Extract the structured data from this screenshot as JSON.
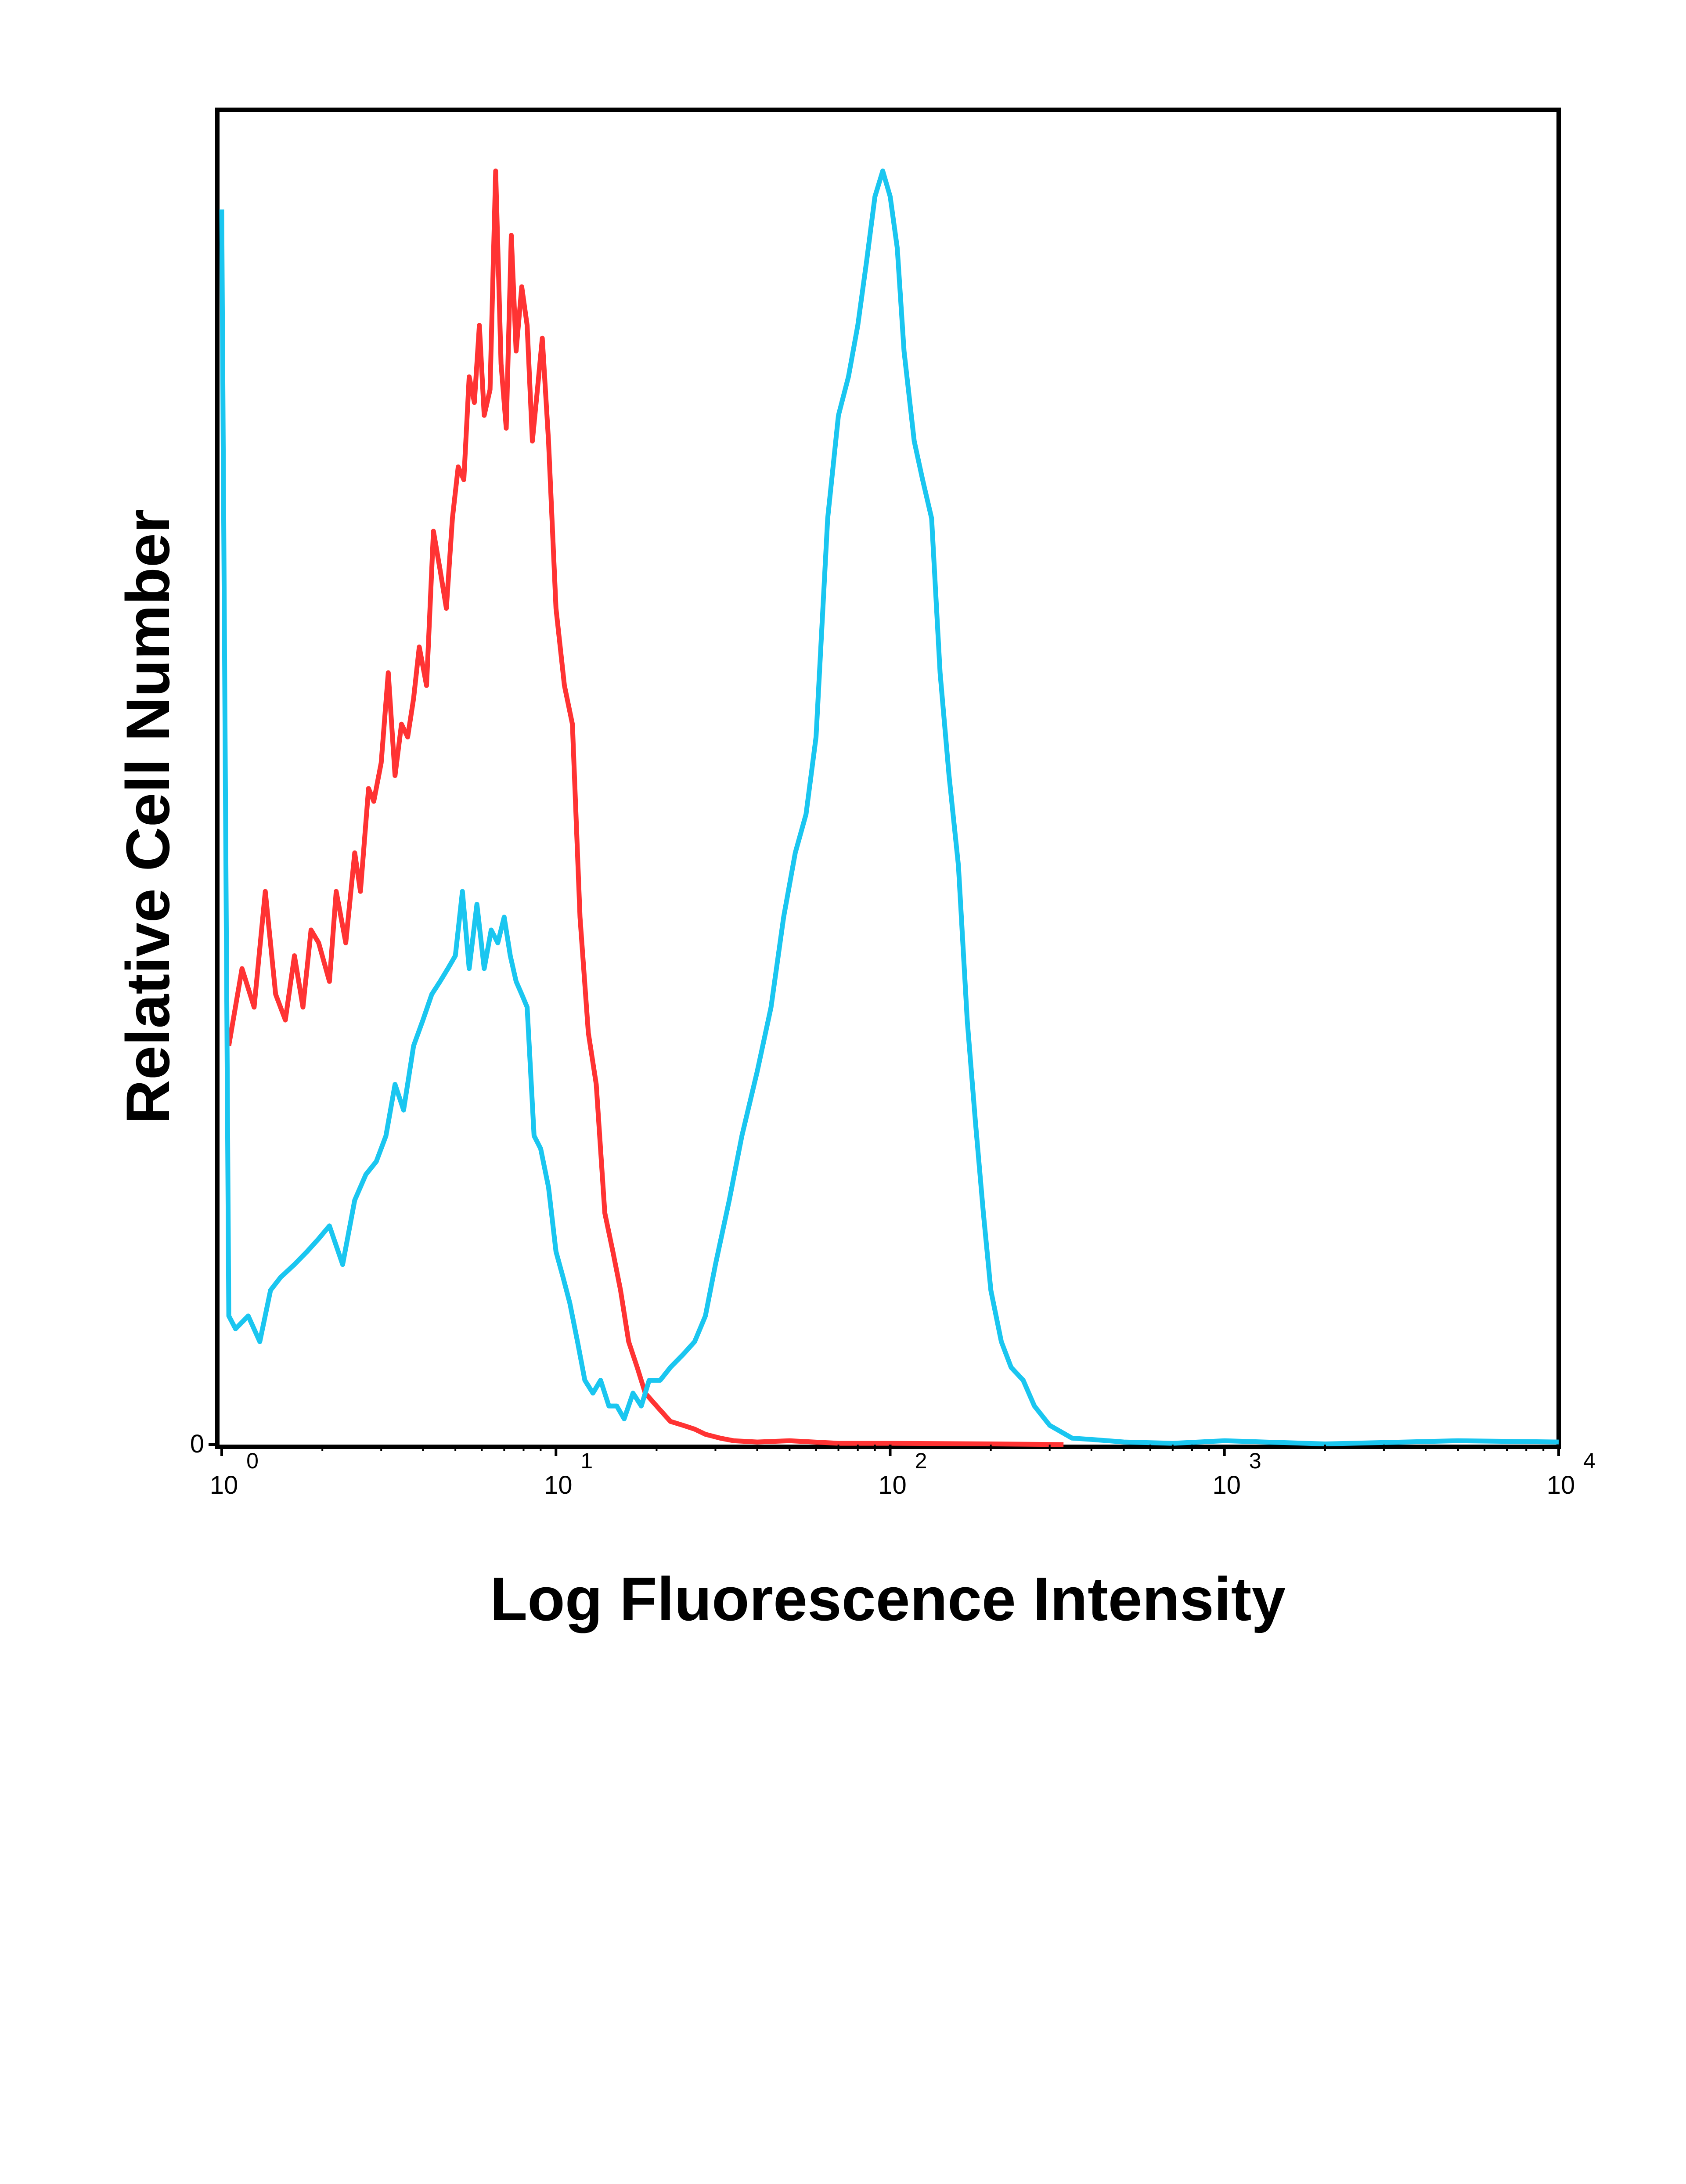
{
  "chart_data": {
    "type": "line",
    "title": "",
    "xlabel": "Log Fluorescence Intensity",
    "ylabel": "Relative Cell Number",
    "x_scale": "log",
    "xlim": [
      1,
      10000
    ],
    "ylim": [
      0,
      100
    ],
    "x_ticks": [
      {
        "value": 1,
        "base": "10",
        "exp": "0"
      },
      {
        "value": 10,
        "base": "10",
        "exp": "1"
      },
      {
        "value": 100,
        "base": "10",
        "exp": "2"
      },
      {
        "value": 1000,
        "base": "10",
        "exp": "3"
      },
      {
        "value": 10000,
        "base": "10",
        "exp": "4"
      }
    ],
    "y_ticks": [
      {
        "value": 0,
        "label": "0"
      }
    ],
    "grid": false,
    "legend": "none",
    "series": [
      {
        "color": "#ff3333",
        "x": [
          1.05,
          1.15,
          1.25,
          1.35,
          1.45,
          1.55,
          1.65,
          1.75,
          1.85,
          1.95,
          2.1,
          2.2,
          2.35,
          2.5,
          2.6,
          2.75,
          2.85,
          3.0,
          3.15,
          3.3,
          3.45,
          3.6,
          3.75,
          3.9,
          4.1,
          4.3,
          4.5,
          4.7,
          4.9,
          5.1,
          5.3,
          5.5,
          5.7,
          5.9,
          6.1,
          6.35,
          6.6,
          6.85,
          7.1,
          7.35,
          7.6,
          7.9,
          8.2,
          8.5,
          8.8,
          9.1,
          9.5,
          10.0,
          10.6,
          11.2,
          11.8,
          12.5,
          13.2,
          14.0,
          14.8,
          15.6,
          16.5,
          17.5,
          18.5,
          20.0,
          22.0,
          24.0,
          26.0,
          28.0,
          31.0,
          34.0,
          40.0,
          50.0,
          70.0,
          100.0,
          200.0,
          330.0
        ],
        "y": [
          31,
          37,
          34,
          43,
          35,
          33,
          38,
          34,
          40,
          39,
          36,
          43,
          39,
          46,
          43,
          51,
          50,
          53,
          60,
          52,
          56,
          55,
          58,
          62,
          59,
          71,
          68,
          65,
          72,
          76,
          75,
          83,
          81,
          87,
          80,
          82,
          99,
          84,
          79,
          94,
          85,
          90,
          87,
          78,
          82,
          86,
          78,
          65,
          59,
          56,
          41,
          32,
          28,
          18,
          15,
          12,
          8,
          6,
          4,
          3,
          1.8,
          1.5,
          1.2,
          0.8,
          0.5,
          0.3,
          0.2,
          0.3,
          0.1,
          0.1,
          0.05,
          0
        ],
        "label_color": "#ff3333"
      },
      {
        "color": "#1ac6f0",
        "x": [
          1.0,
          1.05,
          1.1,
          1.2,
          1.3,
          1.4,
          1.5,
          1.65,
          1.8,
          1.95,
          2.1,
          2.3,
          2.5,
          2.7,
          2.9,
          3.1,
          3.3,
          3.5,
          3.75,
          4.0,
          4.25,
          4.5,
          4.75,
          5.0,
          5.25,
          5.5,
          5.8,
          6.1,
          6.4,
          6.7,
          7.0,
          7.3,
          7.6,
          7.9,
          8.2,
          8.6,
          9.0,
          9.5,
          10.0,
          10.5,
          11.0,
          11.6,
          12.2,
          12.9,
          13.6,
          14.4,
          15.2,
          16.0,
          17.0,
          18.0,
          19.0,
          20.5,
          22.0,
          24.0,
          26.0,
          28.0,
          30.0,
          33.0,
          36.0,
          40.0,
          44.0,
          48.0,
          52.0,
          56.0,
          60.0,
          65.0,
          70.0,
          75.0,
          80.0,
          85.0,
          90.0,
          95.0,
          100.0,
          105.0,
          110.0,
          118.0,
          125.0,
          133.0,
          141.0,
          150.0,
          160.0,
          170.0,
          180.0,
          190.0,
          200.0,
          215.0,
          230.0,
          250.0,
          270.0,
          300.0,
          350.0,
          400.0,
          500.0,
          700.0,
          1000.0,
          2000.0,
          5000.0,
          10000.0
        ],
        "y": [
          96,
          10,
          9,
          10,
          8,
          12,
          13,
          14,
          15,
          16,
          17,
          14,
          19,
          21,
          22,
          24,
          28,
          26,
          31,
          33,
          35,
          36,
          37,
          38,
          43,
          37,
          42,
          37,
          40,
          39,
          41,
          38,
          36,
          35,
          34,
          24,
          23,
          20,
          15,
          13,
          11,
          8,
          5,
          4,
          5,
          3,
          3,
          2,
          4,
          3,
          5,
          5,
          6,
          7,
          8,
          10,
          14,
          19,
          24,
          29,
          34,
          41,
          46,
          49,
          55,
          72,
          80,
          83,
          87,
          92,
          97,
          99,
          97,
          93,
          85,
          78,
          75,
          72,
          60,
          52,
          45,
          33,
          25,
          18,
          12,
          8,
          6,
          5,
          3,
          1.5,
          0.5,
          0.4,
          0.2,
          0.1,
          0.3,
          0.05,
          0.3,
          0.2
        ],
        "label_color": "#1ac6f0"
      }
    ]
  },
  "colors": {
    "axis": "#000000",
    "background": "#ffffff"
  }
}
